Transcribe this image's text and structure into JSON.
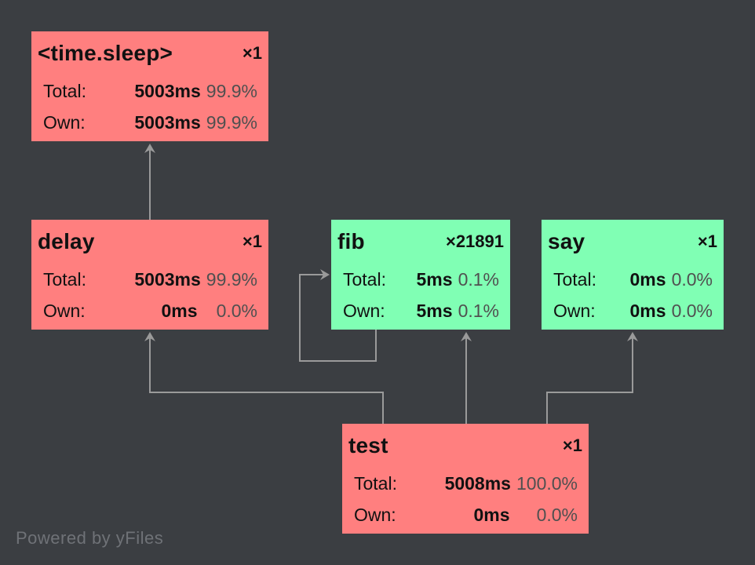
{
  "nodes": {
    "time_sleep": {
      "name": "<time.sleep>",
      "count": "×1",
      "total_label": "Total:",
      "total_ms": "5003ms",
      "total_pct": "99.9%",
      "own_label": "Own:",
      "own_ms": "5003ms",
      "own_pct": "99.9%",
      "status": "hot"
    },
    "delay": {
      "name": "delay",
      "count": "×1",
      "total_label": "Total:",
      "total_ms": "5003ms",
      "total_pct": "99.9%",
      "own_label": "Own:",
      "own_ms": "0ms",
      "own_pct": "0.0%",
      "status": "hot"
    },
    "fib": {
      "name": "fib",
      "count": "×21891",
      "total_label": "Total:",
      "total_ms": "5ms",
      "total_pct": "0.1%",
      "own_label": "Own:",
      "own_ms": "5ms",
      "own_pct": "0.1%",
      "status": "cool"
    },
    "say": {
      "name": "say",
      "count": "×1",
      "total_label": "Total:",
      "total_ms": "0ms",
      "total_pct": "0.0%",
      "own_label": "Own:",
      "own_ms": "0ms",
      "own_pct": "0.0%",
      "status": "cool"
    },
    "test": {
      "name": "test",
      "count": "×1",
      "total_label": "Total:",
      "total_ms": "5008ms",
      "total_pct": "100.0%",
      "own_label": "Own:",
      "own_ms": "0ms",
      "own_pct": "0.0%",
      "status": "hot"
    }
  },
  "edges": [
    {
      "from": "delay",
      "to": "time_sleep"
    },
    {
      "from": "test",
      "to": "delay"
    },
    {
      "from": "test",
      "to": "fib"
    },
    {
      "from": "test",
      "to": "say"
    },
    {
      "from": "fib",
      "to": "fib"
    }
  ],
  "colors": {
    "background": "#3b3e42",
    "hot": "#ff7f7f",
    "cool": "#80ffb4",
    "edge": "#9a9a9a"
  },
  "watermark": "Powered by yFiles"
}
